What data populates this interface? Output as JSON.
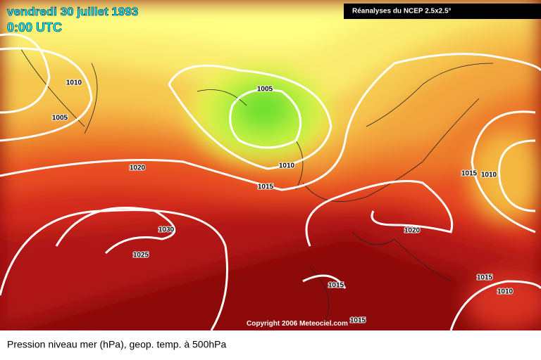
{
  "header": {
    "date": "vendredi 30 juillet 1993",
    "time": "0:00 UTC",
    "source": "Réanalyses du NCEP 2.5x2.5°"
  },
  "map": {
    "isobar_labels": [
      1010,
      1005,
      1005,
      1020,
      1010,
      1015,
      1015,
      1010,
      1030,
      1025,
      1020,
      1015,
      1015,
      1010,
      1015
    ],
    "copyright": "Copyright 2006 Meteociel.com"
  },
  "caption": "Pression niveau mer (hPa), geop. temp. à 500hPa"
}
